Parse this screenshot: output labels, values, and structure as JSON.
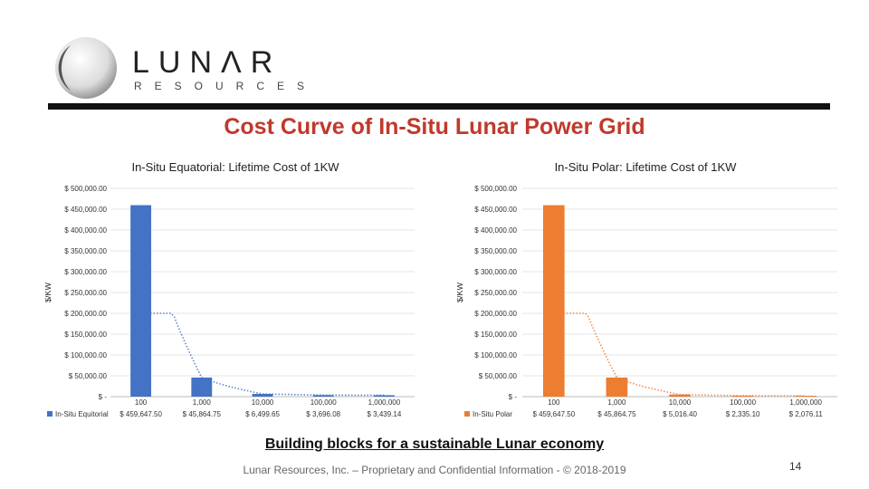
{
  "brand": {
    "name": "LUNΛR",
    "sub": "RESOURCES"
  },
  "title": "Cost Curve of In-Situ Lunar Power Grid",
  "tagline": "Building blocks for a sustainable Lunar economy",
  "footer": "Lunar Resources, Inc. – Proprietary and Confidential Information - © 2018-2019",
  "page_number": "14",
  "colors": {
    "title": "#c0392b",
    "equatorial": "#4472c4",
    "polar": "#ed7d31"
  },
  "chart_data": [
    {
      "type": "bar",
      "title": "In-Situ Equatorial: Lifetime Cost of 1KW",
      "ylabel": "$/KW",
      "ylim": [
        0,
        500000
      ],
      "yticks": [
        "$ 500,000.00",
        "$ 450,000.00",
        "$ 400,000.00",
        "$ 350,000.00",
        "$ 300,000.00",
        "$ 250,000.00",
        "$ 200,000.00",
        "$ 150,000.00",
        "$ 100,000.00",
        "$ 50,000.00",
        "$ -"
      ],
      "categories": [
        "100",
        "1,000",
        "10,000",
        "100,000",
        "1,000,000"
      ],
      "series": [
        {
          "name": "In-Situ Equitorial",
          "values": [
            459647.5,
            45864.75,
            6499.65,
            3696.08,
            3439.14
          ]
        }
      ],
      "value_labels": [
        "$ 459,647.50",
        "$ 45,864.75",
        "$ 6,499.65",
        "$ 3,696.08",
        "$ 3,439.14"
      ],
      "trendline": "dotted",
      "grid": true
    },
    {
      "type": "bar",
      "title": "In-Situ Polar: Lifetime Cost of 1KW",
      "ylabel": "$/KW",
      "ylim": [
        0,
        500000
      ],
      "yticks": [
        "$ 500,000.00",
        "$ 450,000.00",
        "$ 400,000.00",
        "$ 350,000.00",
        "$ 300,000.00",
        "$ 250,000.00",
        "$ 200,000.00",
        "$ 150,000.00",
        "$ 100,000.00",
        "$ 50,000.00",
        "$ -"
      ],
      "categories": [
        "100",
        "1,000",
        "10,000",
        "100,000",
        "1,000,000"
      ],
      "series": [
        {
          "name": "In-Situ Polar",
          "values": [
            459647.5,
            45864.75,
            5016.4,
            2335.1,
            2076.11
          ]
        }
      ],
      "value_labels": [
        "$ 459,647.50",
        "$ 45,864.75",
        "$ 5,016.40",
        "$ 2,335.10",
        "$ 2,076.11"
      ],
      "trendline": "dotted",
      "grid": true
    }
  ]
}
